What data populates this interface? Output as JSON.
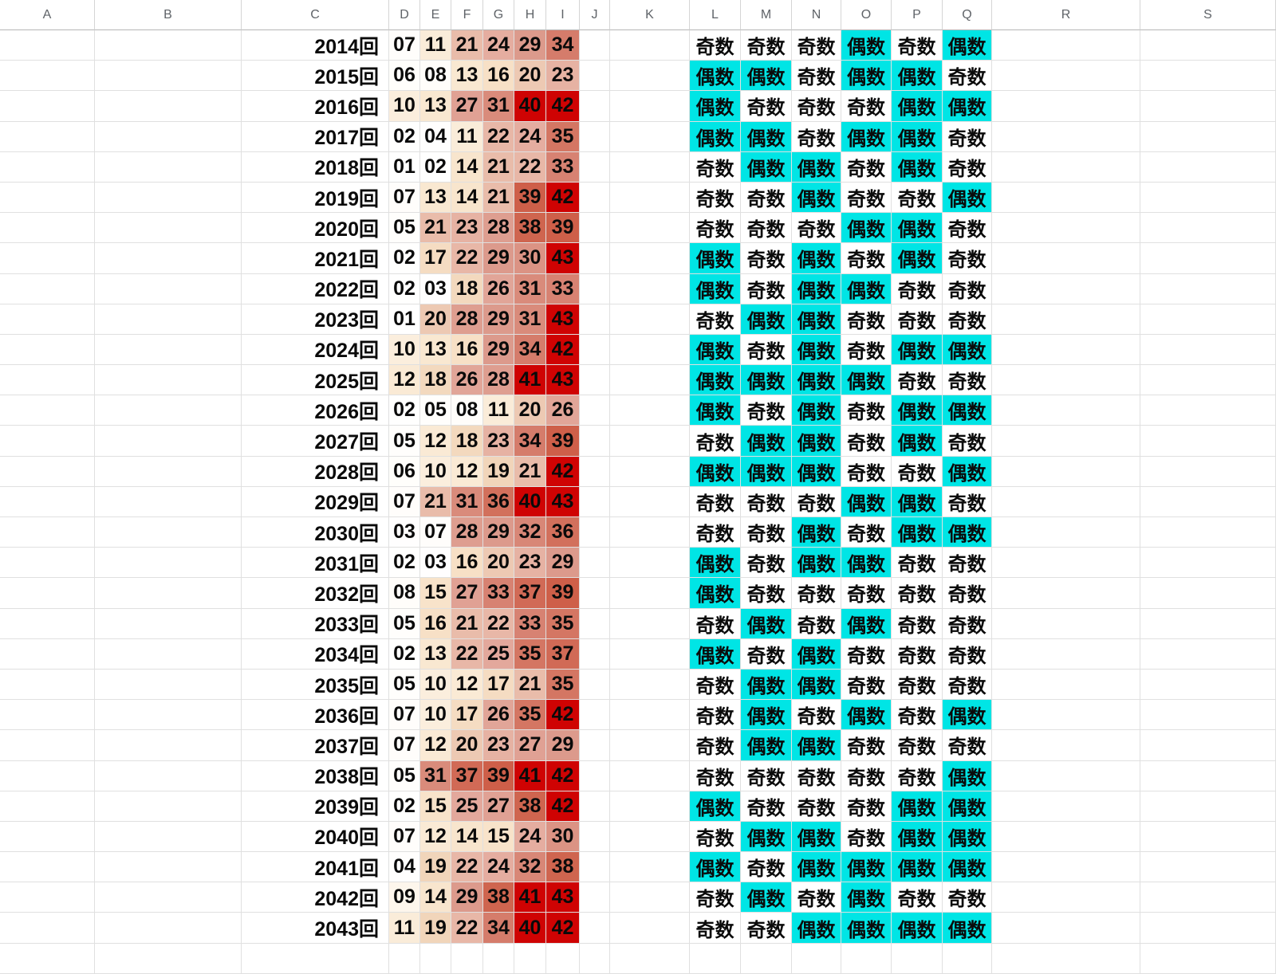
{
  "columns": [
    "A",
    "B",
    "C",
    "D",
    "E",
    "F",
    "G",
    "H",
    "I",
    "J",
    "K",
    "L",
    "M",
    "N",
    "O",
    "P",
    "Q",
    "R",
    "S"
  ],
  "parity_values": {
    "odd": "奇数",
    "even": "偶数"
  },
  "colors": {
    "even_bg": "#00e5e5",
    "odd_bg": "#ffffff",
    "heat_max_red": "#cf0303",
    "cell_text": "#0a0a0a",
    "header_text": "#5f6368",
    "grid_line": "#e0e0e0"
  },
  "heat_scale": {
    "min_value": 1,
    "max_value": 43,
    "anchors": [
      [
        1,
        "#ffffff"
      ],
      [
        8,
        "#fffdfa"
      ],
      [
        10,
        "#fbeedd"
      ],
      [
        13,
        "#f9e8d1"
      ],
      [
        16,
        "#f7e0c6"
      ],
      [
        19,
        "#f1d5ba"
      ],
      [
        20,
        "#edc9b3"
      ],
      [
        21,
        "#e9bcaa"
      ],
      [
        25,
        "#e3a89c"
      ],
      [
        29,
        "#dc9a8c"
      ],
      [
        31,
        "#d98b7b"
      ],
      [
        33,
        "#d78272"
      ],
      [
        36,
        "#d2705c"
      ],
      [
        39,
        "#ce5f49"
      ],
      [
        40,
        "#cf0303"
      ],
      [
        43,
        "#cf0303"
      ]
    ]
  },
  "rows": [
    {
      "label": "2014回",
      "numbers": [
        "07",
        "11",
        "21",
        "24",
        "29",
        "34"
      ],
      "parity": [
        "奇数",
        "奇数",
        "奇数",
        "偶数",
        "奇数",
        "偶数"
      ]
    },
    {
      "label": "2015回",
      "numbers": [
        "06",
        "08",
        "13",
        "16",
        "20",
        "23"
      ],
      "parity": [
        "偶数",
        "偶数",
        "奇数",
        "偶数",
        "偶数",
        "奇数"
      ]
    },
    {
      "label": "2016回",
      "numbers": [
        "10",
        "13",
        "27",
        "31",
        "40",
        "42"
      ],
      "parity": [
        "偶数",
        "奇数",
        "奇数",
        "奇数",
        "偶数",
        "偶数"
      ]
    },
    {
      "label": "2017回",
      "numbers": [
        "02",
        "04",
        "11",
        "22",
        "24",
        "35"
      ],
      "parity": [
        "偶数",
        "偶数",
        "奇数",
        "偶数",
        "偶数",
        "奇数"
      ]
    },
    {
      "label": "2018回",
      "numbers": [
        "01",
        "02",
        "14",
        "21",
        "22",
        "33"
      ],
      "parity": [
        "奇数",
        "偶数",
        "偶数",
        "奇数",
        "偶数",
        "奇数"
      ]
    },
    {
      "label": "2019回",
      "numbers": [
        "07",
        "13",
        "14",
        "21",
        "39",
        "42"
      ],
      "parity": [
        "奇数",
        "奇数",
        "偶数",
        "奇数",
        "奇数",
        "偶数"
      ]
    },
    {
      "label": "2020回",
      "numbers": [
        "05",
        "21",
        "23",
        "28",
        "38",
        "39"
      ],
      "parity": [
        "奇数",
        "奇数",
        "奇数",
        "偶数",
        "偶数",
        "奇数"
      ]
    },
    {
      "label": "2021回",
      "numbers": [
        "02",
        "17",
        "22",
        "29",
        "30",
        "43"
      ],
      "parity": [
        "偶数",
        "奇数",
        "偶数",
        "奇数",
        "偶数",
        "奇数"
      ]
    },
    {
      "label": "2022回",
      "numbers": [
        "02",
        "03",
        "18",
        "26",
        "31",
        "33"
      ],
      "parity": [
        "偶数",
        "奇数",
        "偶数",
        "偶数",
        "奇数",
        "奇数"
      ]
    },
    {
      "label": "2023回",
      "numbers": [
        "01",
        "20",
        "28",
        "29",
        "31",
        "43"
      ],
      "parity": [
        "奇数",
        "偶数",
        "偶数",
        "奇数",
        "奇数",
        "奇数"
      ]
    },
    {
      "label": "2024回",
      "numbers": [
        "10",
        "13",
        "16",
        "29",
        "34",
        "42"
      ],
      "parity": [
        "偶数",
        "奇数",
        "偶数",
        "奇数",
        "偶数",
        "偶数"
      ]
    },
    {
      "label": "2025回",
      "numbers": [
        "12",
        "18",
        "26",
        "28",
        "41",
        "43"
      ],
      "parity": [
        "偶数",
        "偶数",
        "偶数",
        "偶数",
        "奇数",
        "奇数"
      ]
    },
    {
      "label": "2026回",
      "numbers": [
        "02",
        "05",
        "08",
        "11",
        "20",
        "26"
      ],
      "parity": [
        "偶数",
        "奇数",
        "偶数",
        "奇数",
        "偶数",
        "偶数"
      ]
    },
    {
      "label": "2027回",
      "numbers": [
        "05",
        "12",
        "18",
        "23",
        "34",
        "39"
      ],
      "parity": [
        "奇数",
        "偶数",
        "偶数",
        "奇数",
        "偶数",
        "奇数"
      ]
    },
    {
      "label": "2028回",
      "numbers": [
        "06",
        "10",
        "12",
        "19",
        "21",
        "42"
      ],
      "parity": [
        "偶数",
        "偶数",
        "偶数",
        "奇数",
        "奇数",
        "偶数"
      ]
    },
    {
      "label": "2029回",
      "numbers": [
        "07",
        "21",
        "31",
        "36",
        "40",
        "43"
      ],
      "parity": [
        "奇数",
        "奇数",
        "奇数",
        "偶数",
        "偶数",
        "奇数"
      ]
    },
    {
      "label": "2030回",
      "numbers": [
        "03",
        "07",
        "28",
        "29",
        "32",
        "36"
      ],
      "parity": [
        "奇数",
        "奇数",
        "偶数",
        "奇数",
        "偶数",
        "偶数"
      ]
    },
    {
      "label": "2031回",
      "numbers": [
        "02",
        "03",
        "16",
        "20",
        "23",
        "29"
      ],
      "parity": [
        "偶数",
        "奇数",
        "偶数",
        "偶数",
        "奇数",
        "奇数"
      ]
    },
    {
      "label": "2032回",
      "numbers": [
        "08",
        "15",
        "27",
        "33",
        "37",
        "39"
      ],
      "parity": [
        "偶数",
        "奇数",
        "奇数",
        "奇数",
        "奇数",
        "奇数"
      ]
    },
    {
      "label": "2033回",
      "numbers": [
        "05",
        "16",
        "21",
        "22",
        "33",
        "35"
      ],
      "parity": [
        "奇数",
        "偶数",
        "奇数",
        "偶数",
        "奇数",
        "奇数"
      ]
    },
    {
      "label": "2034回",
      "numbers": [
        "02",
        "13",
        "22",
        "25",
        "35",
        "37"
      ],
      "parity": [
        "偶数",
        "奇数",
        "偶数",
        "奇数",
        "奇数",
        "奇数"
      ]
    },
    {
      "label": "2035回",
      "numbers": [
        "05",
        "10",
        "12",
        "17",
        "21",
        "35"
      ],
      "parity": [
        "奇数",
        "偶数",
        "偶数",
        "奇数",
        "奇数",
        "奇数"
      ]
    },
    {
      "label": "2036回",
      "numbers": [
        "07",
        "10",
        "17",
        "26",
        "35",
        "42"
      ],
      "parity": [
        "奇数",
        "偶数",
        "奇数",
        "偶数",
        "奇数",
        "偶数"
      ]
    },
    {
      "label": "2037回",
      "numbers": [
        "07",
        "12",
        "20",
        "23",
        "27",
        "29"
      ],
      "parity": [
        "奇数",
        "偶数",
        "偶数",
        "奇数",
        "奇数",
        "奇数"
      ]
    },
    {
      "label": "2038回",
      "numbers": [
        "05",
        "31",
        "37",
        "39",
        "41",
        "42"
      ],
      "parity": [
        "奇数",
        "奇数",
        "奇数",
        "奇数",
        "奇数",
        "偶数"
      ]
    },
    {
      "label": "2039回",
      "numbers": [
        "02",
        "15",
        "25",
        "27",
        "38",
        "42"
      ],
      "parity": [
        "偶数",
        "奇数",
        "奇数",
        "奇数",
        "偶数",
        "偶数"
      ]
    },
    {
      "label": "2040回",
      "numbers": [
        "07",
        "12",
        "14",
        "15",
        "24",
        "30"
      ],
      "parity": [
        "奇数",
        "偶数",
        "偶数",
        "奇数",
        "偶数",
        "偶数"
      ]
    },
    {
      "label": "2041回",
      "numbers": [
        "04",
        "19",
        "22",
        "24",
        "32",
        "38"
      ],
      "parity": [
        "偶数",
        "奇数",
        "偶数",
        "偶数",
        "偶数",
        "偶数"
      ]
    },
    {
      "label": "2042回",
      "numbers": [
        "09",
        "14",
        "29",
        "38",
        "41",
        "43"
      ],
      "parity": [
        "奇数",
        "偶数",
        "奇数",
        "偶数",
        "奇数",
        "奇数"
      ]
    },
    {
      "label": "2043回",
      "numbers": [
        "11",
        "19",
        "22",
        "34",
        "40",
        "42"
      ],
      "parity": [
        "奇数",
        "奇数",
        "偶数",
        "偶数",
        "偶数",
        "偶数"
      ]
    }
  ]
}
